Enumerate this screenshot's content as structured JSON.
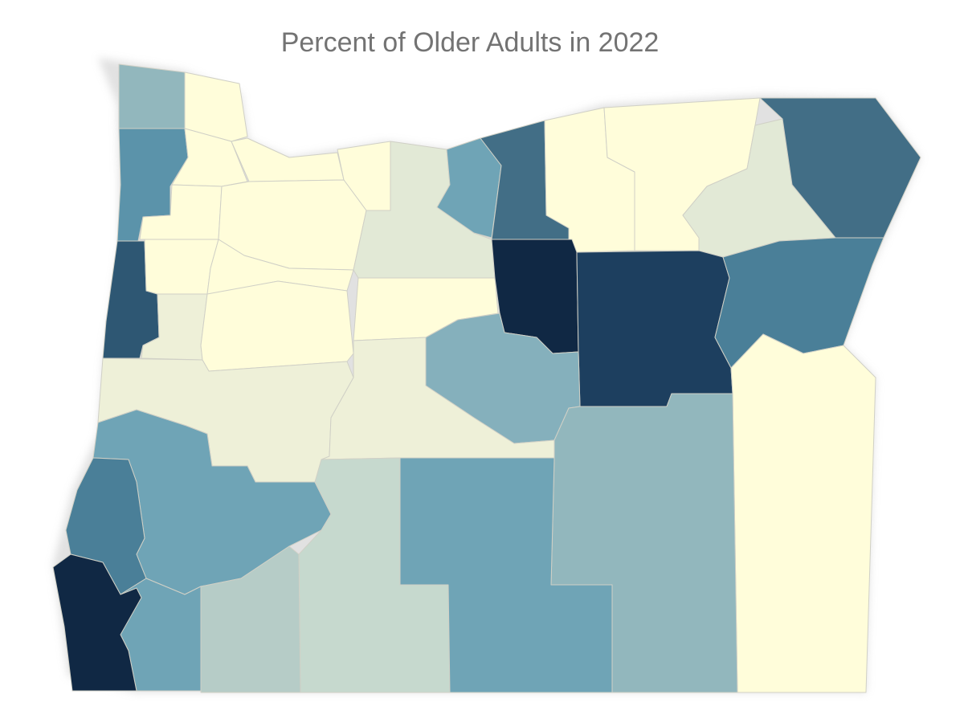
{
  "title": "Percent of Older Adults in 2022",
  "palette": {
    "c1": "#FFFDDA",
    "c2": "#EEF0D8",
    "c3": "#E2E9D6",
    "c4": "#C6D9CE",
    "c5": "#B6CCC7",
    "c6": "#92B7BD",
    "c7": "#85B0BC",
    "c8": "#6FA4B6",
    "c9": "#5B93AA",
    "c10": "#4A7F98",
    "c11": "#426E86",
    "c12": "#2E5773",
    "c13": "#1D3F5F",
    "c14": "#102844"
  }
}
